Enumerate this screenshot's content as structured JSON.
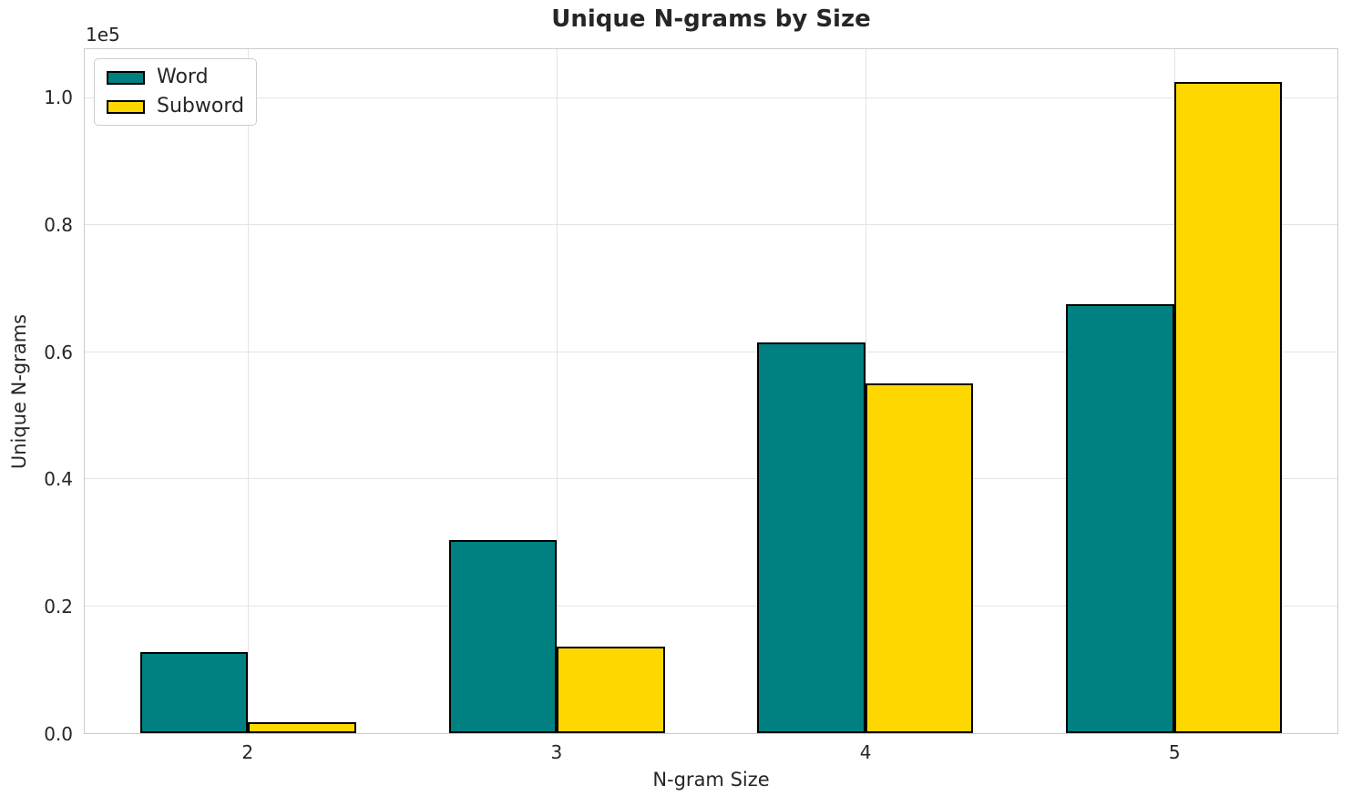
{
  "chart_data": {
    "type": "bar",
    "title": "Unique N-grams by Size",
    "xlabel": "N-gram Size",
    "ylabel": "Unique N-grams",
    "categories": [
      "2",
      "3",
      "4",
      "5"
    ],
    "series": [
      {
        "name": "Word",
        "color": "#008080",
        "values": [
          12800,
          30400,
          61500,
          67600
        ]
      },
      {
        "name": "Subword",
        "color": "#FFD700",
        "values": [
          1700,
          13600,
          55100,
          102600
        ]
      }
    ],
    "y_offset_label": "1e5",
    "y_ticks": [
      {
        "label": "0.0",
        "value": 0
      },
      {
        "label": "0.2",
        "value": 20000
      },
      {
        "label": "0.4",
        "value": 40000
      },
      {
        "label": "0.6",
        "value": 60000
      },
      {
        "label": "0.8",
        "value": 80000
      },
      {
        "label": "1.0",
        "value": 100000
      }
    ],
    "ylim": [
      0,
      107700
    ],
    "xlim": [
      -0.53,
      3.53
    ],
    "bar_width": 0.35,
    "bar_edge_color": "#000000",
    "grid": true,
    "legend_position": "upper-left",
    "legend_entries": [
      "Word",
      "Subword"
    ]
  },
  "style": {
    "background": "#ffffff",
    "grid_color": "#e4e4e4",
    "spine_color": "#cccccc",
    "text_color": "#262626",
    "word_color": "#008080",
    "subword_color": "#FFD700"
  }
}
